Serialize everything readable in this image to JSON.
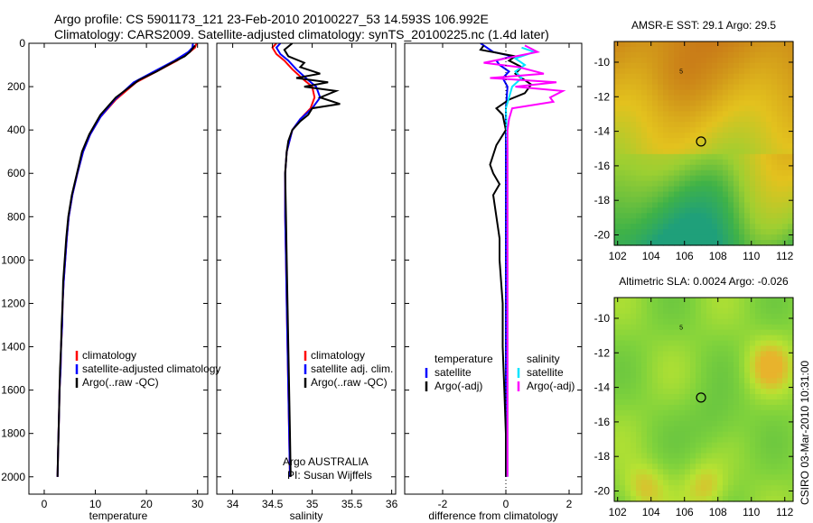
{
  "header": {
    "line1": "Argo profile: CS 5901173_121 23-Feb-2010 20100227_53 14.593S 106.992E",
    "line2": "Climatology: CARS2009. Satellite-adjusted climatology: synTS_20100225.nc (1.4d later)"
  },
  "stamp": "CSIRO 03-Mar-2010 10:31:00",
  "colors": {
    "climatology": "#ff0000",
    "satellite": "#0000ff",
    "argo": "#000000",
    "salinity_satellite": "#00e5ff",
    "salinity_argo": "#ff00ff"
  },
  "chart_data": [
    {
      "type": "line",
      "xlabel": "temperature",
      "xticks": [
        0,
        10,
        20,
        30
      ],
      "xlim": [
        -3,
        32
      ],
      "ylim": [
        2080,
        0
      ],
      "yticks": [
        0,
        200,
        400,
        600,
        800,
        1000,
        1200,
        1400,
        1600,
        1800,
        2000
      ],
      "legend": [
        "climatology",
        "satellite-adjusted climatology",
        "Argo(..raw -QC)"
      ],
      "series": [
        {
          "name": "climatology",
          "color": "#ff0000",
          "points": [
            [
              29.8,
              0
            ],
            [
              29.5,
              20
            ],
            [
              28.5,
              40
            ],
            [
              26,
              80
            ],
            [
              22,
              130
            ],
            [
              18,
              180
            ],
            [
              14,
              260
            ],
            [
              11,
              340
            ],
            [
              9,
              420
            ],
            [
              7.6,
              500
            ],
            [
              6.5,
              600
            ],
            [
              5.5,
              700
            ],
            [
              4.8,
              800
            ],
            [
              4.4,
              900
            ],
            [
              4.1,
              1000
            ],
            [
              3.8,
              1100
            ],
            [
              3.6,
              1200
            ],
            [
              3.5,
              1300
            ],
            [
              3.3,
              1400
            ],
            [
              3.2,
              1500
            ],
            [
              3.0,
              1600
            ],
            [
              2.9,
              1700
            ],
            [
              2.8,
              1800
            ],
            [
              2.7,
              1900
            ],
            [
              2.6,
              2000
            ]
          ]
        },
        {
          "name": "satellite-adjusted climatology",
          "color": "#0000ff",
          "points": [
            [
              29.1,
              0
            ],
            [
              29.0,
              20
            ],
            [
              28.2,
              40
            ],
            [
              25.5,
              80
            ],
            [
              21.5,
              130
            ],
            [
              17.5,
              180
            ],
            [
              13.8,
              260
            ],
            [
              11,
              340
            ],
            [
              9,
              420
            ],
            [
              7.6,
              500
            ],
            [
              6.5,
              600
            ],
            [
              5.5,
              700
            ],
            [
              4.8,
              800
            ],
            [
              4.4,
              900
            ],
            [
              4.1,
              1000
            ],
            [
              3.8,
              1100
            ],
            [
              3.6,
              1200
            ],
            [
              3.5,
              1300
            ],
            [
              3.3,
              1400
            ],
            [
              3.2,
              1500
            ],
            [
              3.0,
              1600
            ],
            [
              2.9,
              1700
            ],
            [
              2.8,
              1800
            ],
            [
              2.7,
              1900
            ],
            [
              2.6,
              2000
            ]
          ]
        },
        {
          "name": "Argo(..raw -QC)",
          "color": "#000000",
          "points": [
            [
              29.5,
              10
            ],
            [
              28.5,
              40
            ],
            [
              27.5,
              60
            ],
            [
              25,
              90
            ],
            [
              22,
              130
            ],
            [
              18.5,
              170
            ],
            [
              14,
              250
            ],
            [
              11,
              330
            ],
            [
              8.8,
              420
            ],
            [
              7.4,
              500
            ],
            [
              6.4,
              600
            ],
            [
              5.4,
              700
            ],
            [
              4.7,
              800
            ],
            [
              4.3,
              900
            ],
            [
              4.0,
              1000
            ],
            [
              3.7,
              1100
            ],
            [
              3.6,
              1200
            ],
            [
              3.4,
              1300
            ],
            [
              3.3,
              1400
            ],
            [
              3.1,
              1500
            ],
            [
              3.0,
              1600
            ],
            [
              2.9,
              1700
            ],
            [
              2.8,
              1800
            ],
            [
              2.7,
              1900
            ],
            [
              2.6,
              2000
            ]
          ]
        }
      ]
    },
    {
      "type": "line",
      "xlabel": "salinity",
      "xticks": [
        34,
        34.5,
        35,
        35.5,
        36
      ],
      "xlim": [
        33.8,
        36.05
      ],
      "ylim": [
        2080,
        0
      ],
      "legend": [
        "climatology",
        "satellite adj. clim.",
        "Argo(..raw -QC)"
      ],
      "annotations": [
        "Argo AUSTRALIA",
        "PI: Susan Wijffels"
      ],
      "series": [
        {
          "name": "climatology",
          "color": "#ff0000",
          "points": [
            [
              34.55,
              0
            ],
            [
              34.5,
              20
            ],
            [
              34.55,
              50
            ],
            [
              34.65,
              80
            ],
            [
              34.75,
              120
            ],
            [
              34.9,
              170
            ],
            [
              35.0,
              200
            ],
            [
              35.03,
              250
            ],
            [
              34.98,
              300
            ],
            [
              34.85,
              350
            ],
            [
              34.75,
              400
            ],
            [
              34.68,
              500
            ],
            [
              34.66,
              600
            ],
            [
              34.66,
              800
            ],
            [
              34.67,
              1000
            ],
            [
              34.68,
              1200
            ],
            [
              34.69,
              1400
            ],
            [
              34.7,
              1600
            ],
            [
              34.71,
              1800
            ],
            [
              34.72,
              2000
            ]
          ]
        },
        {
          "name": "satellite adj. clim.",
          "color": "#0000ff",
          "points": [
            [
              34.6,
              0
            ],
            [
              34.55,
              20
            ],
            [
              34.6,
              50
            ],
            [
              34.7,
              80
            ],
            [
              34.8,
              120
            ],
            [
              34.95,
              170
            ],
            [
              35.05,
              200
            ],
            [
              35.1,
              250
            ],
            [
              35.0,
              300
            ],
            [
              34.85,
              350
            ],
            [
              34.75,
              400
            ],
            [
              34.68,
              500
            ],
            [
              34.66,
              600
            ],
            [
              34.66,
              800
            ],
            [
              34.67,
              1000
            ],
            [
              34.68,
              1200
            ],
            [
              34.69,
              1400
            ],
            [
              34.7,
              1600
            ],
            [
              34.71,
              1800
            ],
            [
              34.72,
              2000
            ]
          ]
        },
        {
          "name": "Argo(..raw -QC)",
          "color": "#000000",
          "points": [
            [
              34.75,
              0
            ],
            [
              34.65,
              30
            ],
            [
              34.7,
              60
            ],
            [
              34.9,
              90
            ],
            [
              34.85,
              110
            ],
            [
              35.1,
              140
            ],
            [
              34.8,
              160
            ],
            [
              35.2,
              180
            ],
            [
              34.9,
              200
            ],
            [
              35.3,
              220
            ],
            [
              35.1,
              250
            ],
            [
              35.35,
              280
            ],
            [
              35.0,
              300
            ],
            [
              34.95,
              330
            ],
            [
              34.85,
              360
            ],
            [
              34.75,
              400
            ],
            [
              34.7,
              450
            ],
            [
              34.68,
              500
            ],
            [
              34.66,
              600
            ],
            [
              34.67,
              800
            ],
            [
              34.68,
              1000
            ],
            [
              34.69,
              1200
            ],
            [
              34.7,
              1400
            ],
            [
              34.71,
              1600
            ],
            [
              34.72,
              1800
            ],
            [
              34.73,
              2000
            ]
          ]
        }
      ]
    },
    {
      "type": "line",
      "xlabel": "difference from climatology",
      "xticks": [
        -2,
        0,
        2
      ],
      "xlim": [
        -3.2,
        2.4
      ],
      "ylim": [
        2080,
        0
      ],
      "legend_titles": [
        "temperature",
        "salinity"
      ],
      "legend": [
        "satellite",
        "Argo(-adj)",
        "satellite",
        "Argo(-adj)"
      ],
      "series": [
        {
          "name": "satellite",
          "group": "temperature",
          "color": "#0000ff",
          "points": [
            [
              -0.8,
              0
            ],
            [
              -0.6,
              20
            ],
            [
              -0.4,
              40
            ],
            [
              0.2,
              60
            ],
            [
              -0.3,
              80
            ],
            [
              -0.2,
              100
            ],
            [
              0.1,
              130
            ],
            [
              -0.1,
              160
            ],
            [
              0.05,
              200
            ],
            [
              0,
              300
            ],
            [
              0,
              500
            ],
            [
              0,
              1000
            ],
            [
              0,
              1500
            ],
            [
              0,
              2000
            ]
          ]
        },
        {
          "name": "Argo(-adj)",
          "group": "temperature",
          "color": "#000000",
          "points": [
            [
              -0.7,
              10
            ],
            [
              -0.8,
              30
            ],
            [
              0.3,
              60
            ],
            [
              0.1,
              80
            ],
            [
              0.5,
              110
            ],
            [
              0.3,
              140
            ],
            [
              0.8,
              190
            ],
            [
              0.6,
              230
            ],
            [
              0.1,
              260
            ],
            [
              -0.3,
              300
            ],
            [
              -0.1,
              330
            ],
            [
              0,
              400
            ],
            [
              -0.3,
              470
            ],
            [
              -0.5,
              560
            ],
            [
              -0.4,
              600
            ],
            [
              -0.2,
              650
            ],
            [
              -0.4,
              700
            ],
            [
              -0.3,
              800
            ],
            [
              -0.2,
              900
            ],
            [
              -0.2,
              1000
            ],
            [
              -0.1,
              1200
            ],
            [
              -0.1,
              1400
            ],
            [
              -0.05,
              1600
            ],
            [
              0,
              1800
            ],
            [
              0,
              2000
            ]
          ]
        },
        {
          "name": "satellite",
          "group": "salinity",
          "color": "#00e5ff",
          "points": [
            [
              0.5,
              20
            ],
            [
              0.9,
              40
            ],
            [
              0.3,
              70
            ],
            [
              0.6,
              100
            ],
            [
              0.3,
              130
            ],
            [
              0.5,
              160
            ],
            [
              0.2,
              200
            ],
            [
              0,
              300
            ],
            [
              0.05,
              500
            ],
            [
              0.05,
              1000
            ],
            [
              0.05,
              1500
            ],
            [
              0.05,
              2000
            ]
          ]
        },
        {
          "name": "Argo(-adj)",
          "group": "salinity",
          "color": "#ff00ff",
          "points": [
            [
              0.6,
              10
            ],
            [
              1.0,
              40
            ],
            [
              -0.7,
              90
            ],
            [
              0.4,
              110
            ],
            [
              1.2,
              140
            ],
            [
              -0.5,
              160
            ],
            [
              1.6,
              180
            ],
            [
              0.3,
              200
            ],
            [
              1.8,
              220
            ],
            [
              1.4,
              250
            ],
            [
              1.5,
              270
            ],
            [
              0.2,
              300
            ],
            [
              0.1,
              350
            ],
            [
              0.05,
              400
            ],
            [
              0.05,
              1000
            ],
            [
              0.05,
              1500
            ],
            [
              0.05,
              2000
            ]
          ]
        }
      ]
    },
    {
      "type": "heatmap",
      "title": "AMSR-E SST: 29.1  Argo: 29.5",
      "xticks": [
        102,
        104,
        106,
        108,
        110,
        112
      ],
      "yticks": [
        -10,
        -12,
        -14,
        -16,
        -18,
        -20
      ],
      "xlim": [
        101.8,
        112.5
      ],
      "ylim": [
        -20.6,
        -8.8
      ],
      "marker": {
        "lon": 106.99,
        "lat": -14.59
      },
      "track_label": "5"
    },
    {
      "type": "heatmap",
      "title": "Altimetric SLA: 0.0024  Argo: -0.026",
      "xticks": [
        102,
        104,
        106,
        108,
        110,
        112
      ],
      "yticks": [
        -10,
        -12,
        -14,
        -16,
        -18,
        -20
      ],
      "xlim": [
        101.8,
        112.5
      ],
      "ylim": [
        -20.6,
        -8.8
      ],
      "marker": {
        "lon": 106.99,
        "lat": -14.59
      },
      "track_label": "5"
    }
  ]
}
